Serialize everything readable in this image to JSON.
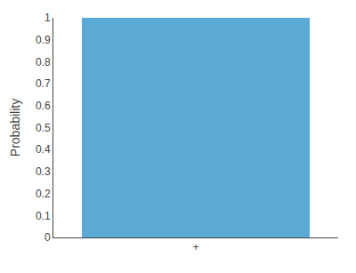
{
  "chart_data": {
    "type": "bar",
    "categories": [
      "+"
    ],
    "values": [
      1.0
    ],
    "color": "#5BAAD5",
    "ylabel": "Probability",
    "ylim": [
      0,
      1.0
    ],
    "yticks": [
      0,
      0.1,
      0.2,
      0.3,
      0.4,
      0.5,
      0.6,
      0.7,
      0.8,
      0.9,
      1.0
    ],
    "grid": false
  }
}
